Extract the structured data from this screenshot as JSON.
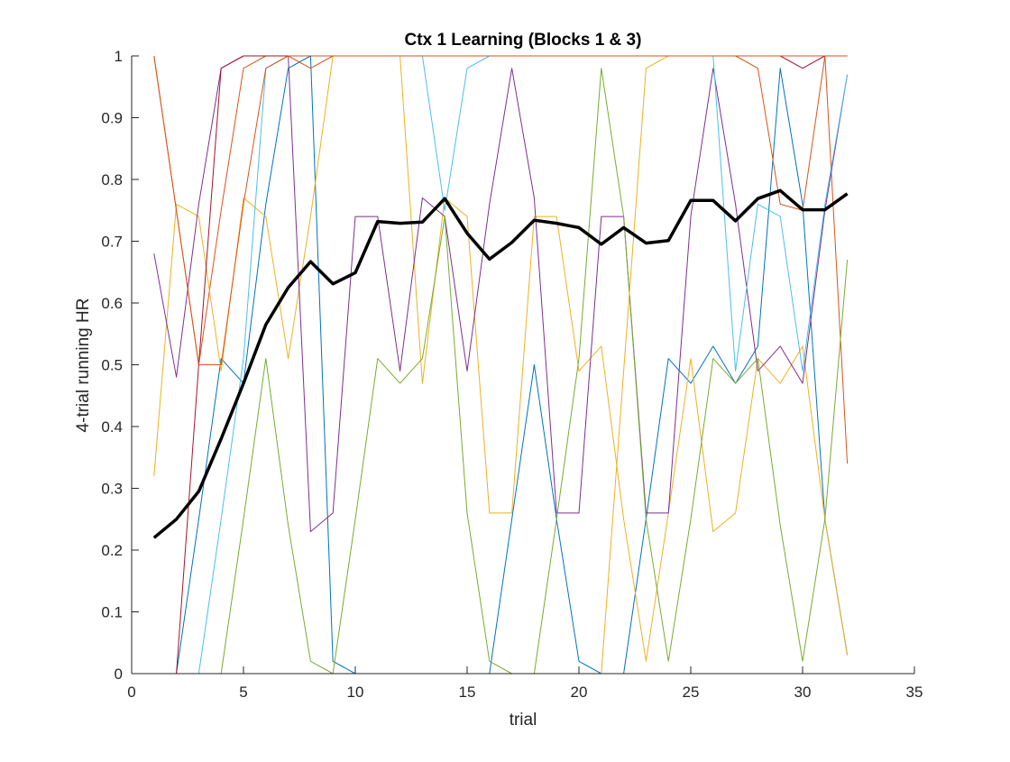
{
  "chart_data": {
    "type": "line",
    "title": "Ctx 1 Learning (Blocks 1 & 3)",
    "xlabel": "trial",
    "ylabel": "4-trial running HR",
    "xlim": [
      0,
      35
    ],
    "ylim": [
      0,
      1
    ],
    "xticks": [
      0,
      5,
      10,
      15,
      20,
      25,
      30,
      35
    ],
    "yticks": [
      0,
      0.1,
      0.2,
      0.3,
      0.4,
      0.5,
      0.6,
      0.7,
      0.8,
      0.9,
      1
    ],
    "grid": false,
    "legend": "none",
    "x": [
      1,
      2,
      3,
      4,
      5,
      6,
      7,
      8,
      9,
      10,
      11,
      12,
      13,
      14,
      15,
      16,
      17,
      18,
      19,
      20,
      21,
      22,
      23,
      24,
      25,
      26,
      27,
      28,
      29,
      30,
      31,
      32
    ],
    "series": [
      {
        "color": "#0072BD",
        "values": [
          0,
          0,
          0.25,
          0.51,
          0.47,
          0.76,
          0.98,
          1,
          0.02,
          0,
          0,
          0,
          0,
          0,
          0,
          0,
          0.25,
          0.5,
          0.25,
          0.02,
          0,
          0,
          0.25,
          0.51,
          0.47,
          0.53,
          0.47,
          0.53,
          0.98,
          0.76,
          0.25,
          0.03
        ]
      },
      {
        "color": "#D95319",
        "values": [
          1,
          0.75,
          0.5,
          0.75,
          0.98,
          1,
          1,
          0.98,
          1,
          1,
          1,
          1,
          1,
          1,
          1,
          1,
          1,
          1,
          1,
          1,
          1,
          1,
          1,
          1,
          1,
          1,
          1,
          0.98,
          0.76,
          0.75,
          1,
          0.34
        ]
      },
      {
        "color": "#EDB120",
        "values": [
          0.32,
          0.76,
          0.74,
          0.49,
          0.77,
          0.74,
          0.51,
          0.74,
          1,
          1,
          1,
          1,
          0.47,
          0.77,
          0.74,
          0.26,
          0.26,
          0.74,
          0.74,
          0.49,
          0.53,
          0.25,
          0.02,
          0.26,
          0.51,
          0.23,
          0.26,
          0.51,
          0.47,
          0.53,
          0.25,
          0.03
        ]
      },
      {
        "color": "#7E2F8E",
        "values": [
          0.68,
          0.48,
          0.76,
          0.98,
          1,
          1,
          1,
          0.23,
          0.26,
          0.74,
          0.74,
          0.49,
          0.77,
          0.74,
          0.49,
          0.76,
          0.98,
          0.77,
          0.26,
          0.26,
          0.74,
          0.74,
          0.26,
          0.26,
          0.74,
          0.98,
          0.76,
          0.49,
          0.53,
          0.47,
          0.75,
          0.97
        ]
      },
      {
        "color": "#77AC30",
        "values": [
          0,
          0,
          0,
          0,
          0.25,
          0.51,
          0.24,
          0.02,
          0,
          0.25,
          0.51,
          0.47,
          0.51,
          0.74,
          0.26,
          0.02,
          0,
          0,
          0.25,
          0.51,
          0.98,
          0.74,
          0.25,
          0.02,
          0.25,
          0.51,
          0.47,
          0.51,
          0.24,
          0.02,
          0.25,
          0.67
        ]
      },
      {
        "color": "#4DBEEE",
        "values": [
          0,
          0,
          0,
          0.25,
          0.51,
          0.98,
          1,
          1,
          1,
          1,
          1,
          1,
          1,
          0.75,
          0.98,
          1,
          1,
          1,
          1,
          1,
          1,
          1,
          1,
          1,
          1,
          1,
          0.49,
          0.76,
          0.74,
          0.49,
          0.76,
          0.97
        ]
      },
      {
        "color": "#A2142F",
        "values": [
          0,
          0,
          0.5,
          0.98,
          1,
          1,
          1,
          1,
          1,
          1,
          1,
          1,
          1,
          1,
          1,
          1,
          1,
          1,
          1,
          1,
          1,
          1,
          1,
          1,
          1,
          1,
          1,
          1,
          1,
          0.98,
          1,
          1
        ]
      },
      {
        "color": "#0072BD",
        "values": [
          0,
          0,
          0,
          0,
          0,
          0,
          0,
          0,
          0,
          0,
          0,
          0,
          0,
          0,
          0,
          0,
          0,
          0,
          0,
          0,
          0,
          0,
          0,
          0,
          0,
          0,
          0,
          0,
          0,
          0,
          0,
          0
        ]
      },
      {
        "color": "#EDB120",
        "values": [
          0,
          0,
          0,
          0,
          0,
          0,
          0,
          0,
          0,
          0,
          0,
          0,
          0,
          0,
          0,
          0,
          0,
          0,
          0,
          0,
          0,
          0.49,
          0.98,
          1,
          1,
          1,
          1,
          1,
          1,
          1,
          1,
          1
        ]
      },
      {
        "color": "#D95319",
        "values": [
          1,
          0.75,
          0.5,
          0.5,
          0.76,
          0.98,
          1,
          1,
          1,
          1,
          1,
          1,
          1,
          1,
          1,
          1,
          1,
          1,
          1,
          1,
          1,
          1,
          1,
          1,
          1,
          1,
          1,
          1,
          1,
          1,
          1,
          1
        ]
      },
      {
        "color": "#77AC30",
        "values": [
          0,
          0,
          0,
          0,
          0,
          0,
          0,
          0,
          0,
          0,
          0,
          0,
          0,
          0,
          0,
          0,
          0,
          0,
          0,
          0,
          0,
          0,
          0,
          0,
          0,
          0,
          0,
          0,
          0,
          0,
          0,
          0
        ]
      }
    ],
    "mean": {
      "color": "#000000",
      "values": [
        0.22,
        0.25,
        0.295,
        0.38,
        0.47,
        0.565,
        0.625,
        0.667,
        0.631,
        0.649,
        0.732,
        0.729,
        0.731,
        0.769,
        0.713,
        0.671,
        0.698,
        0.734,
        0.729,
        0.722,
        0.695,
        0.722,
        0.697,
        0.701,
        0.766,
        0.766,
        0.733,
        0.769,
        0.782,
        0.751,
        0.751,
        0.777
      ]
    }
  }
}
